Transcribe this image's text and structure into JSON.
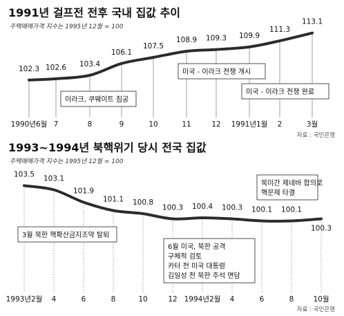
{
  "chart_data": [
    {
      "type": "line",
      "title": "1991년 걸프전 전후 국내 집값 추이",
      "subtitle": "주택매매가격 지수는 1995년 12월 = 100",
      "source": "자료 : 국민은행",
      "categories": [
        "1990년6월",
        "7",
        "8",
        "9",
        "10",
        "11",
        "12",
        "1991년1월",
        "2",
        "3월"
      ],
      "series": [
        {
          "values": [
            102.3,
            102.6,
            103.4,
            106.1,
            107.5,
            108.9,
            109.3,
            109.9,
            111.3,
            113.1
          ]
        }
      ],
      "value_labels": [
        "102.3",
        "102.6",
        "103.4",
        "106.1",
        "107.5",
        "108.9",
        "109.3",
        "109.9",
        "111.3",
        "113.1"
      ],
      "annotations": [
        {
          "text": "이라크, 쿠웨이트 침공",
          "at": "8"
        },
        {
          "text": "미국 - 이라크 전쟁 개시",
          "at": "1991년1월"
        },
        {
          "text": "미국 - 이라크 전쟁 완료",
          "at": "2"
        }
      ],
      "ylim": [
        101,
        114
      ]
    },
    {
      "type": "line",
      "title": "1993~1994년 북핵위기 당시 전국 집값",
      "subtitle": "주택매매가격 지수는 1995년 12월 = 100",
      "source": "자료 : 국민은행",
      "categories": [
        "1993년2월",
        "4",
        "6",
        "8",
        "10",
        "12",
        "1994년2월",
        "4",
        "6",
        "8",
        "10월"
      ],
      "series": [
        {
          "values": [
            103.5,
            103.1,
            101.9,
            101.1,
            100.8,
            100.3,
            100.4,
            100.3,
            100.1,
            100.1,
            100.3
          ]
        }
      ],
      "value_labels": [
        "103.5",
        "103.1",
        "101.9",
        "101.1",
        "100.8",
        "100.3",
        "100.4",
        "100.3",
        "100.1",
        "100.1",
        "100.3"
      ],
      "annotations": [
        {
          "text": [
            "3월 북한 핵확산금지조약 탈퇴"
          ],
          "at": "1993년2월"
        },
        {
          "text": [
            "6월 미국, 북한 공격",
            "구체적 검토",
            "카터 전 미국 대통령",
            "김일성 전 북한 주석 면담"
          ],
          "at": "6"
        },
        {
          "text": [
            "북미간 제네바 합의로",
            "핵문제 타결"
          ],
          "at": "10월"
        }
      ],
      "ylim": [
        99.4,
        104
      ]
    }
  ]
}
